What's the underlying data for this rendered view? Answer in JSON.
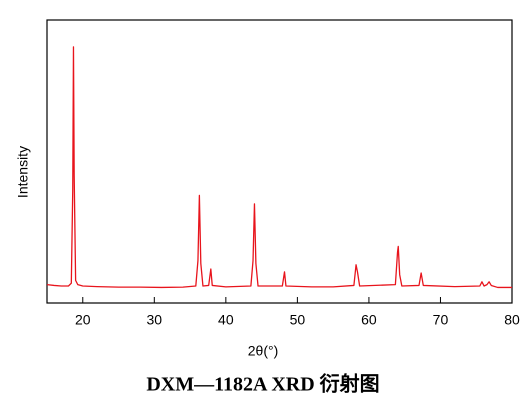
{
  "chart_data": {
    "type": "line",
    "title": "DXM—1182A XRD 衍射图",
    "x_label": "2θ(°)",
    "y_label": "Intensity",
    "color": "#e8141c",
    "xlim": [
      15,
      80
    ],
    "xticks": [
      20,
      30,
      40,
      50,
      60,
      70,
      80
    ],
    "ylim": [
      0,
      100
    ],
    "x": [
      15,
      16,
      17,
      18,
      18.4,
      18.6,
      18.7,
      18.8,
      19.0,
      19.3,
      20,
      22,
      25,
      28,
      31,
      34,
      35.8,
      36.1,
      36.3,
      36.5,
      36.8,
      37.6,
      37.9,
      38.1,
      40,
      43.5,
      43.8,
      44.0,
      44.2,
      44.5,
      47.9,
      48.2,
      48.4,
      52,
      55,
      57.9,
      58.2,
      58.4,
      58.7,
      63.7,
      64.0,
      64.1,
      64.3,
      64.6,
      67,
      67.3,
      67.6,
      72,
      75.5,
      75.8,
      76.1,
      76.5,
      76.8,
      77.1,
      78,
      80
    ],
    "values": [
      6.5,
      6.2,
      6,
      6,
      7,
      40,
      90.5,
      45,
      8,
      6.5,
      6,
      5.8,
      5.6,
      5.6,
      5.5,
      5.6,
      6,
      15,
      38,
      14,
      6,
      6.2,
      12,
      6.2,
      5.7,
      6,
      15,
      35,
      14,
      6,
      6,
      11,
      6,
      5.7,
      5.7,
      6.2,
      13.5,
      11,
      6,
      6.5,
      18,
      20,
      10,
      6,
      6.2,
      10.6,
      6.2,
      5.8,
      6,
      7.5,
      6,
      6.5,
      7.5,
      6.2,
      5.5,
      5.5
    ]
  }
}
